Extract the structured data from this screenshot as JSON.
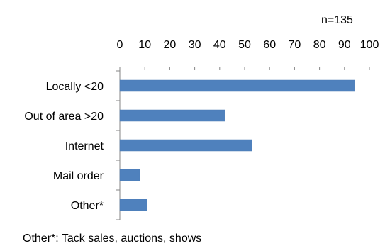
{
  "chart_data": {
    "type": "bar",
    "orientation": "horizontal",
    "annotation": "n=135",
    "categories": [
      "Locally <20",
      "Out of area >20",
      "Internet",
      "Mail order",
      "Other*"
    ],
    "series": [
      {
        "values": [
          94,
          42,
          53,
          8,
          11
        ],
        "color": "#4F81BD"
      }
    ],
    "x_ticks": [
      "0",
      "10",
      "20",
      "30",
      "40",
      "50",
      "60",
      "70",
      "80",
      "90",
      "100"
    ],
    "xlim": [
      0,
      100
    ],
    "x_axis_position": "top",
    "grid": false,
    "legend": "none"
  },
  "footnote": "Other*:  Tack sales, auctions, shows"
}
